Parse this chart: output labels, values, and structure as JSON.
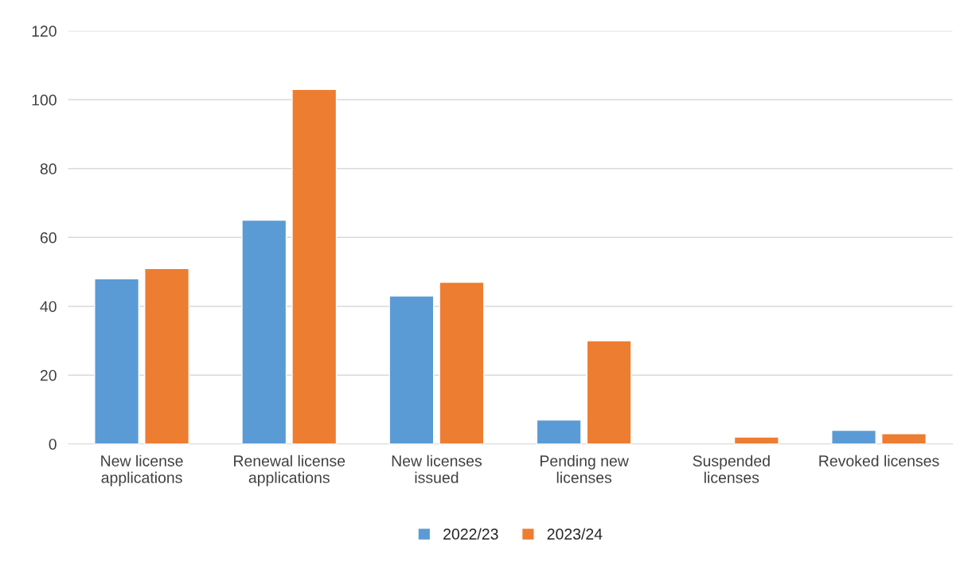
{
  "chart_data": {
    "type": "bar",
    "categories": [
      "New license\napplications",
      "Renewal license\napplications",
      "New licenses\nissued",
      "Pending new\nlicenses",
      "Suspended\nlicenses",
      "Revoked licenses"
    ],
    "series": [
      {
        "name": "2022/23",
        "color": "#5b9bd5",
        "values": [
          48,
          65,
          43,
          7,
          null,
          4
        ]
      },
      {
        "name": "2023/24",
        "color": "#ed7d31",
        "values": [
          51,
          103,
          47,
          30,
          2,
          3
        ]
      }
    ],
    "ylim": [
      0,
      120
    ],
    "yticks": [
      0,
      20,
      40,
      60,
      80,
      100,
      120
    ],
    "grid": "y",
    "legend": "bottom"
  }
}
